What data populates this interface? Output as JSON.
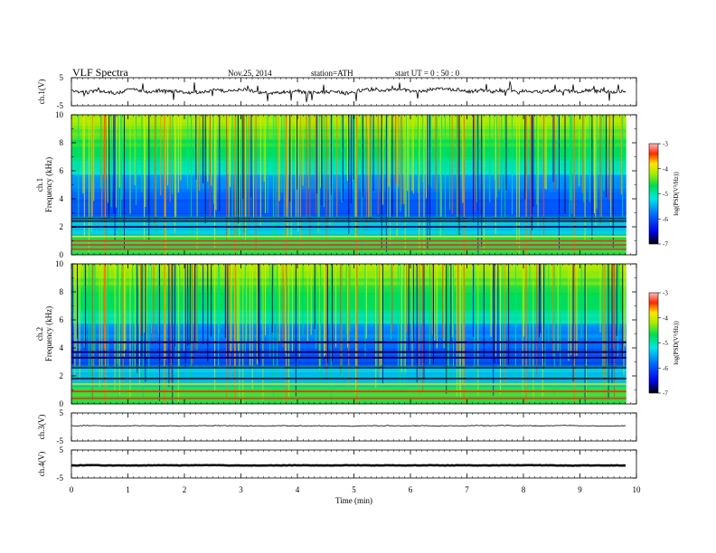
{
  "header": {
    "title": "VLF  Spectra",
    "date": "Nov.25, 2014",
    "station": "station=ATH",
    "start": "start  UT =   0 : 50 : 0"
  },
  "chart_data": [
    {
      "type": "line",
      "panel": "waveform-ch1",
      "ylabel": "ch.1(V)",
      "ylim": [
        -5,
        5
      ],
      "ytick_labels": [
        "-5",
        "5"
      ],
      "xlim": [
        0,
        10
      ],
      "data_end_min": 9.82,
      "baseline_v": 0.0,
      "amplitude_v": 1.5,
      "color": "#000000"
    },
    {
      "type": "heatmap",
      "panel": "spectrogram-ch1",
      "ylabel_top": "ch.1",
      "ylabel": "Frequency  (kHz)",
      "ylim": [
        0,
        10
      ],
      "ytick_labels": [
        "0",
        "2",
        "4",
        "6",
        "8",
        "10"
      ],
      "xlim": [
        0,
        10
      ],
      "data_end_min": 9.82,
      "colorbar": {
        "label": "log(PSD(V²/Hz))",
        "range": [
          -7,
          -3
        ],
        "tick_labels": [
          "-7",
          "-6",
          "-5",
          "-4",
          "-3"
        ],
        "colors": [
          "#000000",
          "#0000ff",
          "#00ffff",
          "#00ff00",
          "#ffff00",
          "#ff0000",
          "#ffc0c0"
        ]
      },
      "bands_khz": [
        0.4,
        0.7,
        1.0,
        1.3,
        2.0,
        2.4,
        2.6
      ],
      "stronger_lines_min": [
        0.6,
        1.65,
        2.9,
        3.8,
        5.05,
        6.95,
        8.05,
        8.9
      ]
    },
    {
      "type": "heatmap",
      "panel": "spectrogram-ch2",
      "ylabel_top": "ch.2",
      "ylabel": "Frequency  (kHz)",
      "ylim": [
        0,
        10
      ],
      "ytick_labels": [
        "0",
        "2",
        "4",
        "6",
        "8",
        "10"
      ],
      "xlim": [
        0,
        10
      ],
      "data_end_min": 9.82,
      "colorbar": {
        "label": "log(PSD(V²/Hz))",
        "range": [
          -7,
          -3
        ],
        "tick_labels": [
          "-7",
          "-6",
          "-5",
          "-4",
          "-3"
        ],
        "colors": [
          "#000000",
          "#0000ff",
          "#00ffff",
          "#00ff00",
          "#ffff00",
          "#ff0000",
          "#ffc0c0"
        ]
      },
      "bands_khz": [
        0.4,
        0.9,
        1.4,
        1.8,
        2.6,
        3.3,
        3.7,
        4.4
      ],
      "stronger_lines_min": [
        0.6,
        1.65,
        2.9,
        3.8,
        5.05,
        6.95,
        8.05,
        8.9
      ]
    },
    {
      "type": "line",
      "panel": "waveform-ch3",
      "ylabel": "ch.3(V)",
      "ylim": [
        -5,
        5
      ],
      "ytick_labels": [
        "-5",
        "5"
      ],
      "xlim": [
        0,
        10
      ],
      "data_end_min": 9.82,
      "baseline_v": 0.4,
      "amplitude_v": 0.3,
      "color": "#000000"
    },
    {
      "type": "line",
      "panel": "waveform-ch4",
      "ylabel": "ch.4(V)",
      "ylim": [
        -5,
        5
      ],
      "ytick_labels": [
        "-5",
        "5"
      ],
      "xlim": [
        0,
        10
      ],
      "data_end_min": 9.82,
      "baseline_v": -0.5,
      "amplitude_v": 0.15,
      "color": "#000000"
    }
  ],
  "xaxis": {
    "label": "Time  (min)",
    "tick_labels": [
      "0",
      "1",
      "2",
      "3",
      "4",
      "5",
      "6",
      "7",
      "8",
      "9",
      "10"
    ]
  }
}
